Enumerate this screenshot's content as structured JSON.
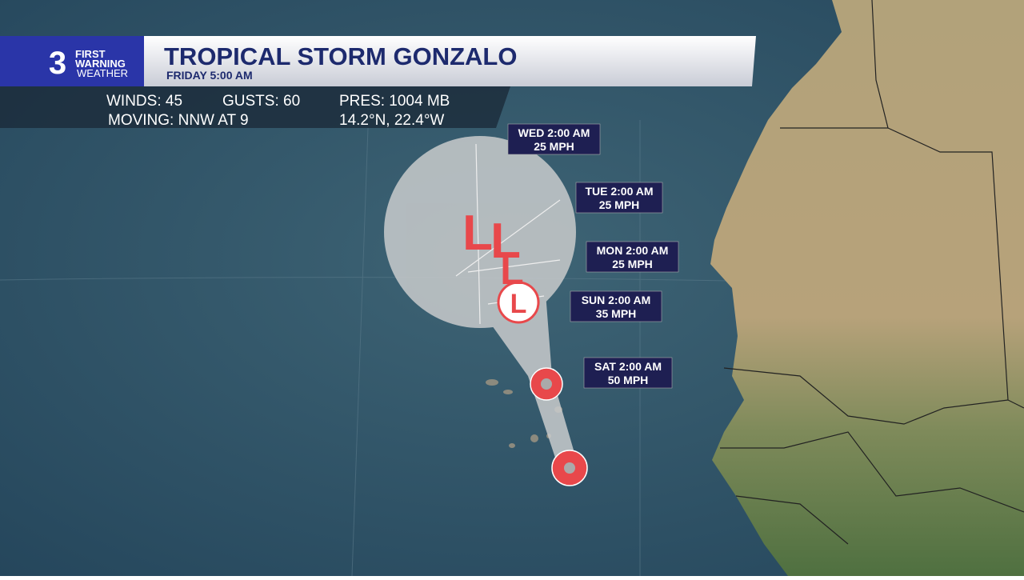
{
  "logo": {
    "number": "3",
    "line1": "FIRST",
    "line2": "WARNING",
    "line3": "WEATHER"
  },
  "header": {
    "title": "TROPICAL STORM GONZALO",
    "subtitle": "FRIDAY 5:00 AM"
  },
  "stats": {
    "winds": "WINDS: 45",
    "gusts": "GUSTS: 60",
    "pressure": "PRES: 1004 MB",
    "moving": "MOVING: NNW AT 9",
    "position": "14.2°N, 22.4°W"
  },
  "forecast": [
    {
      "time": "WED 2:00 AM",
      "wind": "25 MPH"
    },
    {
      "time": "TUE 2:00 AM",
      "wind": "25 MPH"
    },
    {
      "time": "MON 2:00 AM",
      "wind": "25 MPH"
    },
    {
      "time": "SUN 2:00 AM",
      "wind": "35 MPH"
    },
    {
      "time": "SAT 2:00 AM",
      "wind": "50 MPH"
    }
  ],
  "track_symbols": [
    "L",
    "L",
    "L",
    "L"
  ]
}
